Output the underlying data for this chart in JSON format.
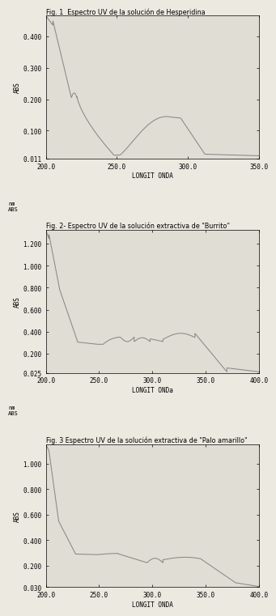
{
  "fig1": {
    "title": "Fig. 1  Espectro UV de la solución de Hesperidina",
    "xlabel": "LONGIT ONDA",
    "xlim": [
      200.0,
      350.0
    ],
    "ylim": [
      0.011,
      0.466
    ],
    "yticks": [
      0.011,
      0.1,
      0.2,
      0.3,
      0.4
    ],
    "ytick_labels": [
      "0.011",
      "0.100",
      "0.200",
      "0.300",
      "0.400"
    ],
    "xticks": [
      200.0,
      250.0,
      300.0,
      350.0
    ],
    "xtick_labels": [
      "200.0",
      "250.0",
      "300.0",
      "350.0"
    ]
  },
  "fig2": {
    "title": "Fig. 2- Espectro UV de la solución extractiva de \"Burrito\"",
    "xlabel": "LONGIT ONDa",
    "xlim": [
      200.0,
      400.0
    ],
    "ylim": [
      0.025,
      1.325
    ],
    "yticks": [
      0.025,
      0.2,
      0.4,
      0.6,
      0.8,
      1.0,
      1.2
    ],
    "ytick_labels": [
      "0.025",
      "0.200",
      "0.400",
      "0.600",
      "0.800",
      "1.000",
      "1.200"
    ],
    "xticks": [
      200.0,
      250.0,
      300.0,
      350.0,
      400.0
    ],
    "xtick_labels": [
      "200.0",
      "250.0",
      "300.0",
      "350.0",
      "400.0"
    ]
  },
  "fig3": {
    "title": "Fig. 3 Espectro UV de la solución extractiva de \"Palo amarillo\"",
    "xlabel": "LONGIT ONDA",
    "xlim": [
      200.0,
      400.0
    ],
    "ylim": [
      0.03,
      1.152
    ],
    "yticks": [
      0.03,
      0.2,
      0.4,
      0.6,
      0.8,
      1.0
    ],
    "ytick_labels": [
      "0.030",
      "0.200",
      "0.400",
      "0.600",
      "0.800",
      "1.000"
    ],
    "xticks": [
      200.0,
      250.0,
      300.0,
      350.0,
      400.0
    ],
    "xtick_labels": [
      "200.0",
      "250.0",
      "300.0",
      "350.0",
      "400.0"
    ]
  },
  "line_color": "#888888",
  "bg_color": "#ebe9e0",
  "plot_bg": "#e0ddd4",
  "font_size": 5.5,
  "title_font_size": 5.8,
  "label_nm_abs": "nm\nABS"
}
